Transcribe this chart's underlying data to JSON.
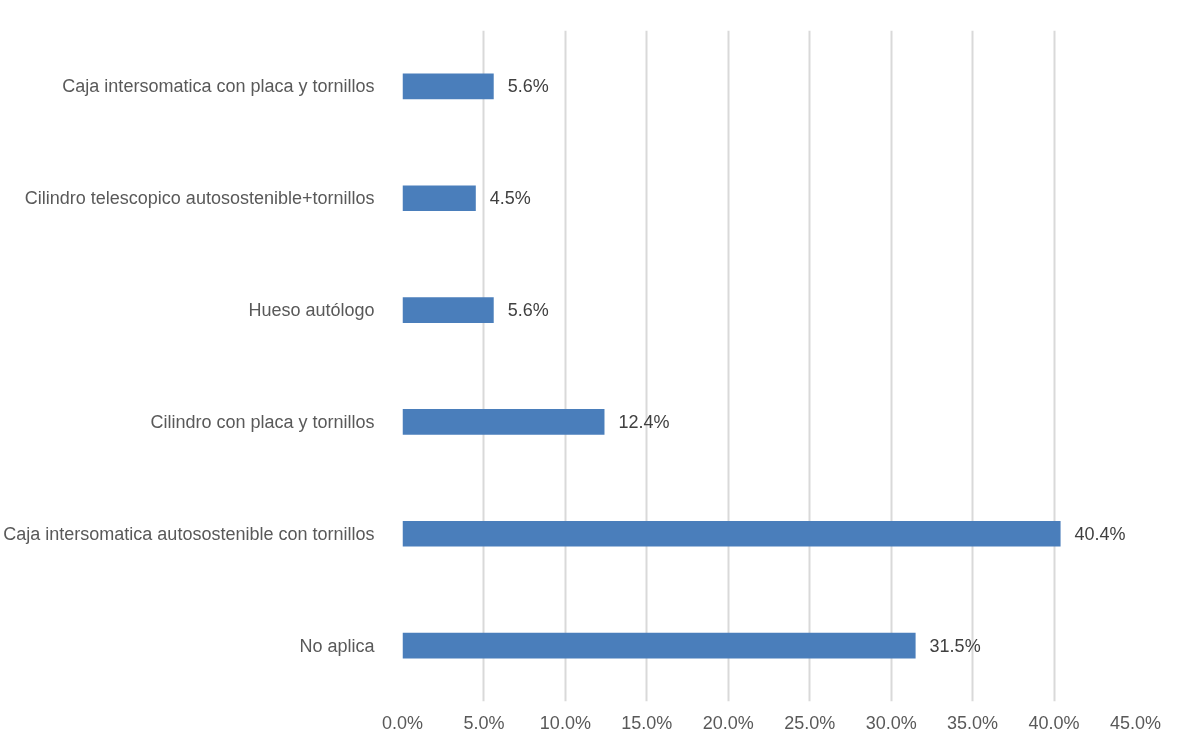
{
  "chart_data": {
    "type": "bar",
    "orientation": "horizontal",
    "categories": [
      "Caja intersomatica con placa y tornillos",
      "Cilindro telescopico autosostenible+tornillos",
      "Hueso autólogo",
      "Cilindro con placa y tornillos",
      "Caja intersomatica autosostenible con tornillos",
      "No aplica"
    ],
    "values": [
      5.6,
      4.5,
      5.6,
      12.4,
      40.4,
      31.5
    ],
    "value_labels": [
      "5.6%",
      "4.5%",
      "5.6%",
      "12.4%",
      "40.4%",
      "31.5%"
    ],
    "color": "#4a7ebb",
    "xlim": [
      0,
      45
    ],
    "xticks": [
      {
        "value": 0,
        "label": "0.0%"
      },
      {
        "value": 5,
        "label": "5.0%"
      },
      {
        "value": 10,
        "label": "10.0%"
      },
      {
        "value": 15,
        "label": "15.0%"
      },
      {
        "value": 20,
        "label": "20.0%"
      },
      {
        "value": 25,
        "label": "25.0%"
      },
      {
        "value": 30,
        "label": "30.0%"
      },
      {
        "value": 35,
        "label": "35.0%"
      },
      {
        "value": 40,
        "label": "40.0%"
      },
      {
        "value": 45,
        "label": "45.0%"
      }
    ],
    "grid": "x"
  }
}
